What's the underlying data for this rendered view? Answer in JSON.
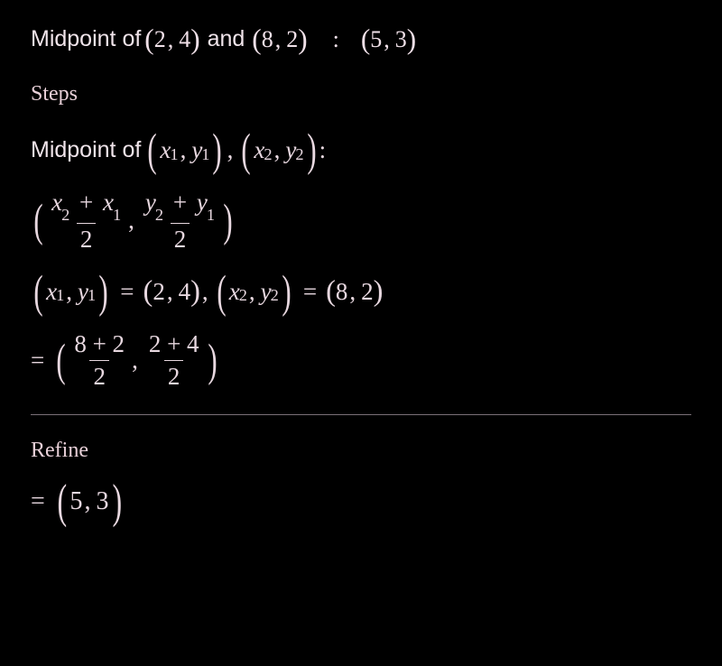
{
  "colors": {
    "background": "#000000",
    "text": "#e8d8e0",
    "divider": "#7a7078"
  },
  "heading": {
    "prefix": "Midpoint of",
    "p1": {
      "x": "2",
      "y": "4"
    },
    "join": "and",
    "p2": {
      "x": "8",
      "y": "2"
    },
    "result": {
      "x": "5",
      "y": "3"
    }
  },
  "steps": {
    "label": "Steps",
    "formula_prefix": "Midpoint of",
    "vars": {
      "x1": "x",
      "x1s": "1",
      "y1": "y",
      "y1s": "1",
      "x2": "x",
      "x2s": "2",
      "y2": "y",
      "y2s": "2"
    },
    "frac_denom": "2",
    "plus": "+",
    "assign": {
      "p1": {
        "x": "2",
        "y": "4"
      },
      "p2": {
        "x": "8",
        "y": "2"
      }
    },
    "subst": {
      "nx": "8 + 2",
      "ny": "2 + 4",
      "den": "2"
    }
  },
  "refine": {
    "label": "Refine",
    "result": {
      "x": "5",
      "y": "3"
    }
  }
}
